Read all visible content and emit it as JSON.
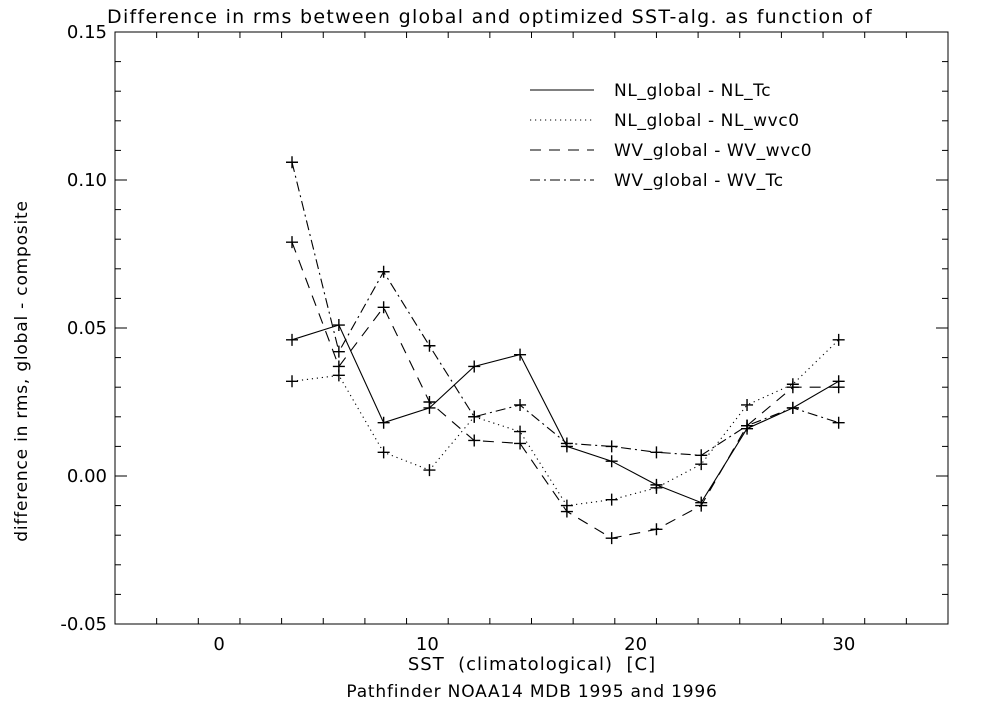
{
  "chart_data": {
    "type": "line",
    "title": "Difference in rms between global and optimized SST-alg. as function of",
    "xlabel": "SST  (climatological)  [C]",
    "subtitle": "Pathfinder NOAA14 MDB 1995 and 1996",
    "ylabel": "difference in rms, global - composite",
    "xlim": [
      -5,
      35
    ],
    "ylim": [
      -0.05,
      0.15
    ],
    "x_ticks": [
      0,
      10,
      20,
      30
    ],
    "x_tick_labels": [
      "0",
      "10",
      "20",
      "30"
    ],
    "y_ticks": [
      -0.05,
      0.0,
      0.05,
      0.1,
      0.15
    ],
    "y_tick_labels": [
      "-0.05",
      "0.00",
      "0.05",
      "0.10",
      "0.15"
    ],
    "grid": false,
    "legend_position": "top-right",
    "x": [
      3.5,
      5.75,
      7.9,
      10.1,
      12.25,
      14.45,
      16.7,
      18.85,
      21.0,
      23.15,
      25.35,
      27.55,
      29.75
    ],
    "series": [
      {
        "name": "NL_global - NL_Tc",
        "dash": "solid",
        "values": [
          0.046,
          0.051,
          0.018,
          0.023,
          0.037,
          0.041,
          0.01,
          0.005,
          -0.003,
          -0.009,
          0.016,
          0.023,
          0.032
        ]
      },
      {
        "name": "NL_global - NL_wvc0",
        "dash": "dotted",
        "values": [
          0.032,
          0.034,
          0.008,
          0.002,
          0.02,
          0.015,
          -0.01,
          -0.008,
          -0.004,
          0.004,
          0.024,
          0.031,
          0.046
        ]
      },
      {
        "name": "WV_global - WV_wvc0",
        "dash": "dashed",
        "values": [
          0.079,
          0.037,
          0.057,
          0.025,
          0.012,
          0.011,
          -0.012,
          -0.021,
          -0.018,
          -0.01,
          0.017,
          0.03,
          0.03
        ]
      },
      {
        "name": "WV_global - WV_Tc",
        "dash": "dashdot",
        "values": [
          0.106,
          0.042,
          0.069,
          0.044,
          0.02,
          0.024,
          0.011,
          0.01,
          0.008,
          0.007,
          0.017,
          0.023,
          0.018
        ]
      }
    ]
  }
}
